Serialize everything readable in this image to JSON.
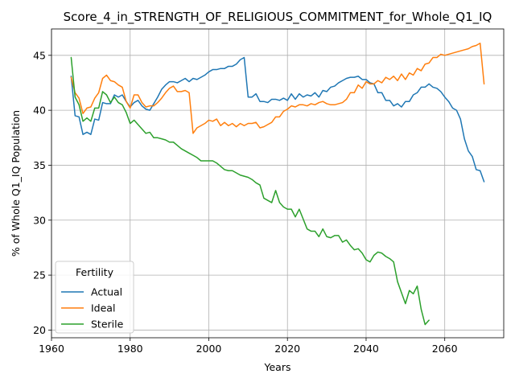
{
  "chart_data": {
    "type": "line",
    "title": "Score_4_in_STRENGTH_OF_RELIGIOUS_COMMITMENT_for_Whole_Q1_IQ",
    "xlabel": "Years",
    "ylabel": "% of Whole Q1_IQ Population",
    "xlim": [
      1960,
      2075
    ],
    "ylim": [
      19.3,
      47.4
    ],
    "xticks": [
      1960,
      1980,
      2000,
      2020,
      2040,
      2060
    ],
    "yticks": [
      20,
      25,
      30,
      35,
      40,
      45
    ],
    "grid": true,
    "legend": {
      "title": "Fertility",
      "position": "lower-left"
    },
    "series": [
      {
        "name": "Actual",
        "color": "#1f77b4",
        "points": [
          [
            1965,
            43.1
          ],
          [
            1966,
            39.5
          ],
          [
            1967,
            39.4
          ],
          [
            1968,
            37.8
          ],
          [
            1969,
            38.0
          ],
          [
            1970,
            37.8
          ],
          [
            1971,
            39.2
          ],
          [
            1972,
            39.1
          ],
          [
            1973,
            40.7
          ],
          [
            1974,
            40.6
          ],
          [
            1975,
            40.6
          ],
          [
            1976,
            41.4
          ],
          [
            1977,
            41.2
          ],
          [
            1978,
            41.4
          ],
          [
            1979,
            40.8
          ],
          [
            1980,
            40.3
          ],
          [
            1981,
            40.7
          ],
          [
            1982,
            40.9
          ],
          [
            1983,
            40.4
          ],
          [
            1984,
            40.1
          ],
          [
            1985,
            40.0
          ],
          [
            1986,
            40.6
          ],
          [
            1987,
            41.2
          ],
          [
            1988,
            41.9
          ],
          [
            1989,
            42.3
          ],
          [
            1990,
            42.6
          ],
          [
            1991,
            42.6
          ],
          [
            1992,
            42.5
          ],
          [
            1993,
            42.7
          ],
          [
            1994,
            42.9
          ],
          [
            1995,
            42.6
          ],
          [
            1996,
            42.9
          ],
          [
            1997,
            42.8
          ],
          [
            1998,
            43.0
          ],
          [
            1999,
            43.2
          ],
          [
            2000,
            43.5
          ],
          [
            2001,
            43.7
          ],
          [
            2002,
            43.7
          ],
          [
            2003,
            43.8
          ],
          [
            2004,
            43.8
          ],
          [
            2005,
            44.0
          ],
          [
            2006,
            44.0
          ],
          [
            2007,
            44.2
          ],
          [
            2008,
            44.6
          ],
          [
            2009,
            44.8
          ],
          [
            2010,
            41.2
          ],
          [
            2011,
            41.2
          ],
          [
            2012,
            41.5
          ],
          [
            2013,
            40.8
          ],
          [
            2014,
            40.8
          ],
          [
            2015,
            40.7
          ],
          [
            2016,
            41.0
          ],
          [
            2017,
            41.0
          ],
          [
            2018,
            40.9
          ],
          [
            2019,
            41.1
          ],
          [
            2020,
            40.9
          ],
          [
            2021,
            41.5
          ],
          [
            2022,
            41.0
          ],
          [
            2023,
            41.5
          ],
          [
            2024,
            41.2
          ],
          [
            2025,
            41.4
          ],
          [
            2026,
            41.3
          ],
          [
            2027,
            41.6
          ],
          [
            2028,
            41.2
          ],
          [
            2029,
            41.8
          ],
          [
            2030,
            41.7
          ],
          [
            2031,
            42.1
          ],
          [
            2032,
            42.2
          ],
          [
            2033,
            42.5
          ],
          [
            2034,
            42.7
          ],
          [
            2035,
            42.9
          ],
          [
            2036,
            43.0
          ],
          [
            2037,
            43.0
          ],
          [
            2038,
            43.1
          ],
          [
            2039,
            42.8
          ],
          [
            2040,
            42.8
          ],
          [
            2041,
            42.5
          ],
          [
            2042,
            42.4
          ],
          [
            2043,
            41.6
          ],
          [
            2044,
            41.6
          ],
          [
            2045,
            40.9
          ],
          [
            2046,
            40.9
          ],
          [
            2047,
            40.4
          ],
          [
            2048,
            40.6
          ],
          [
            2049,
            40.3
          ],
          [
            2050,
            40.8
          ],
          [
            2051,
            40.8
          ],
          [
            2052,
            41.4
          ],
          [
            2053,
            41.6
          ],
          [
            2054,
            42.1
          ],
          [
            2055,
            42.1
          ],
          [
            2056,
            42.4
          ],
          [
            2057,
            42.1
          ],
          [
            2058,
            42.0
          ],
          [
            2059,
            41.7
          ],
          [
            2060,
            41.2
          ],
          [
            2061,
            40.8
          ],
          [
            2062,
            40.2
          ],
          [
            2063,
            40.0
          ],
          [
            2064,
            39.2
          ],
          [
            2065,
            37.4
          ],
          [
            2066,
            36.3
          ],
          [
            2067,
            35.8
          ],
          [
            2068,
            34.6
          ],
          [
            2069,
            34.5
          ],
          [
            2070,
            33.5
          ]
        ]
      },
      {
        "name": "Ideal",
        "color": "#ff7f0e",
        "points": [
          [
            1965,
            43.0
          ],
          [
            1966,
            41.6
          ],
          [
            1967,
            41.1
          ],
          [
            1968,
            39.7
          ],
          [
            1969,
            40.2
          ],
          [
            1970,
            40.3
          ],
          [
            1971,
            41.1
          ],
          [
            1972,
            41.6
          ],
          [
            1973,
            42.9
          ],
          [
            1974,
            43.2
          ],
          [
            1975,
            42.7
          ],
          [
            1976,
            42.6
          ],
          [
            1977,
            42.3
          ],
          [
            1978,
            42.1
          ],
          [
            1979,
            40.8
          ],
          [
            1980,
            40.2
          ],
          [
            1981,
            41.4
          ],
          [
            1982,
            41.4
          ],
          [
            1983,
            40.7
          ],
          [
            1984,
            40.3
          ],
          [
            1985,
            40.4
          ],
          [
            1986,
            40.4
          ],
          [
            1987,
            40.7
          ],
          [
            1988,
            41.1
          ],
          [
            1989,
            41.6
          ],
          [
            1990,
            42.0
          ],
          [
            1991,
            42.2
          ],
          [
            1992,
            41.7
          ],
          [
            1993,
            41.7
          ],
          [
            1994,
            41.8
          ],
          [
            1995,
            41.6
          ],
          [
            1996,
            37.9
          ],
          [
            1997,
            38.4
          ],
          [
            1998,
            38.6
          ],
          [
            1999,
            38.8
          ],
          [
            2000,
            39.1
          ],
          [
            2001,
            39.0
          ],
          [
            2002,
            39.2
          ],
          [
            2003,
            38.6
          ],
          [
            2004,
            38.9
          ],
          [
            2005,
            38.6
          ],
          [
            2006,
            38.8
          ],
          [
            2007,
            38.5
          ],
          [
            2008,
            38.8
          ],
          [
            2009,
            38.6
          ],
          [
            2010,
            38.8
          ],
          [
            2011,
            38.8
          ],
          [
            2012,
            38.9
          ],
          [
            2013,
            38.4
          ],
          [
            2014,
            38.5
          ],
          [
            2015,
            38.7
          ],
          [
            2016,
            38.9
          ],
          [
            2017,
            39.4
          ],
          [
            2018,
            39.4
          ],
          [
            2019,
            39.9
          ],
          [
            2020,
            40.1
          ],
          [
            2021,
            40.4
          ],
          [
            2022,
            40.3
          ],
          [
            2023,
            40.5
          ],
          [
            2024,
            40.5
          ],
          [
            2025,
            40.4
          ],
          [
            2026,
            40.6
          ],
          [
            2027,
            40.5
          ],
          [
            2028,
            40.7
          ],
          [
            2029,
            40.8
          ],
          [
            2030,
            40.6
          ],
          [
            2031,
            40.5
          ],
          [
            2032,
            40.5
          ],
          [
            2033,
            40.6
          ],
          [
            2034,
            40.7
          ],
          [
            2035,
            41.0
          ],
          [
            2036,
            41.6
          ],
          [
            2037,
            41.6
          ],
          [
            2038,
            42.3
          ],
          [
            2039,
            42.0
          ],
          [
            2040,
            42.6
          ],
          [
            2041,
            42.4
          ],
          [
            2042,
            42.4
          ],
          [
            2043,
            42.7
          ],
          [
            2044,
            42.5
          ],
          [
            2045,
            43.0
          ],
          [
            2046,
            42.8
          ],
          [
            2047,
            43.1
          ],
          [
            2048,
            42.7
          ],
          [
            2049,
            43.3
          ],
          [
            2050,
            42.8
          ],
          [
            2051,
            43.4
          ],
          [
            2052,
            43.2
          ],
          [
            2053,
            43.8
          ],
          [
            2054,
            43.6
          ],
          [
            2055,
            44.2
          ],
          [
            2056,
            44.3
          ],
          [
            2057,
            44.8
          ],
          [
            2058,
            44.8
          ],
          [
            2059,
            45.1
          ],
          [
            2060,
            45.0
          ],
          [
            2061,
            45.1
          ],
          [
            2062,
            45.2
          ],
          [
            2063,
            45.3
          ],
          [
            2064,
            45.4
          ],
          [
            2065,
            45.5
          ],
          [
            2066,
            45.6
          ],
          [
            2067,
            45.8
          ],
          [
            2068,
            45.9
          ],
          [
            2069,
            46.1
          ],
          [
            2070,
            42.4
          ]
        ]
      },
      {
        "name": "Sterile",
        "color": "#2ca02c",
        "points": [
          [
            1965,
            44.8
          ],
          [
            1966,
            41.2
          ],
          [
            1967,
            40.5
          ],
          [
            1968,
            39.0
          ],
          [
            1969,
            39.3
          ],
          [
            1970,
            39.0
          ],
          [
            1971,
            40.2
          ],
          [
            1972,
            40.2
          ],
          [
            1973,
            41.7
          ],
          [
            1974,
            41.4
          ],
          [
            1975,
            40.7
          ],
          [
            1976,
            41.2
          ],
          [
            1977,
            40.7
          ],
          [
            1978,
            40.5
          ],
          [
            1979,
            39.8
          ],
          [
            1980,
            38.8
          ],
          [
            1981,
            39.1
          ],
          [
            1982,
            38.7
          ],
          [
            1983,
            38.3
          ],
          [
            1984,
            37.9
          ],
          [
            1985,
            38.0
          ],
          [
            1986,
            37.5
          ],
          [
            1987,
            37.5
          ],
          [
            1988,
            37.4
          ],
          [
            1989,
            37.3
          ],
          [
            1990,
            37.1
          ],
          [
            1991,
            37.1
          ],
          [
            1992,
            36.8
          ],
          [
            1993,
            36.5
          ],
          [
            1994,
            36.3
          ],
          [
            1995,
            36.1
          ],
          [
            1996,
            35.9
          ],
          [
            1997,
            35.7
          ],
          [
            1998,
            35.4
          ],
          [
            1999,
            35.4
          ],
          [
            2000,
            35.4
          ],
          [
            2001,
            35.4
          ],
          [
            2002,
            35.2
          ],
          [
            2003,
            34.9
          ],
          [
            2004,
            34.6
          ],
          [
            2005,
            34.5
          ],
          [
            2006,
            34.5
          ],
          [
            2007,
            34.3
          ],
          [
            2008,
            34.1
          ],
          [
            2009,
            34.0
          ],
          [
            2010,
            33.9
          ],
          [
            2011,
            33.7
          ],
          [
            2012,
            33.4
          ],
          [
            2013,
            33.2
          ],
          [
            2014,
            32.0
          ],
          [
            2015,
            31.8
          ],
          [
            2016,
            31.6
          ],
          [
            2017,
            32.7
          ],
          [
            2018,
            31.6
          ],
          [
            2019,
            31.2
          ],
          [
            2020,
            31.0
          ],
          [
            2021,
            31.0
          ],
          [
            2022,
            30.3
          ],
          [
            2023,
            31.0
          ],
          [
            2024,
            30.1
          ],
          [
            2025,
            29.2
          ],
          [
            2026,
            29.0
          ],
          [
            2027,
            29.0
          ],
          [
            2028,
            28.5
          ],
          [
            2029,
            29.2
          ],
          [
            2030,
            28.5
          ],
          [
            2031,
            28.4
          ],
          [
            2032,
            28.6
          ],
          [
            2033,
            28.6
          ],
          [
            2034,
            28.0
          ],
          [
            2035,
            28.2
          ],
          [
            2036,
            27.7
          ],
          [
            2037,
            27.3
          ],
          [
            2038,
            27.4
          ],
          [
            2039,
            27.0
          ],
          [
            2040,
            26.4
          ],
          [
            2041,
            26.2
          ],
          [
            2042,
            26.8
          ],
          [
            2043,
            27.1
          ],
          [
            2044,
            27.0
          ],
          [
            2045,
            26.7
          ],
          [
            2046,
            26.5
          ],
          [
            2047,
            26.2
          ],
          [
            2048,
            24.4
          ],
          [
            2049,
            23.4
          ],
          [
            2050,
            22.4
          ],
          [
            2051,
            23.6
          ],
          [
            2052,
            23.3
          ],
          [
            2053,
            24.0
          ],
          [
            2054,
            21.9
          ],
          [
            2055,
            20.5
          ],
          [
            2056,
            20.9
          ]
        ]
      }
    ]
  }
}
